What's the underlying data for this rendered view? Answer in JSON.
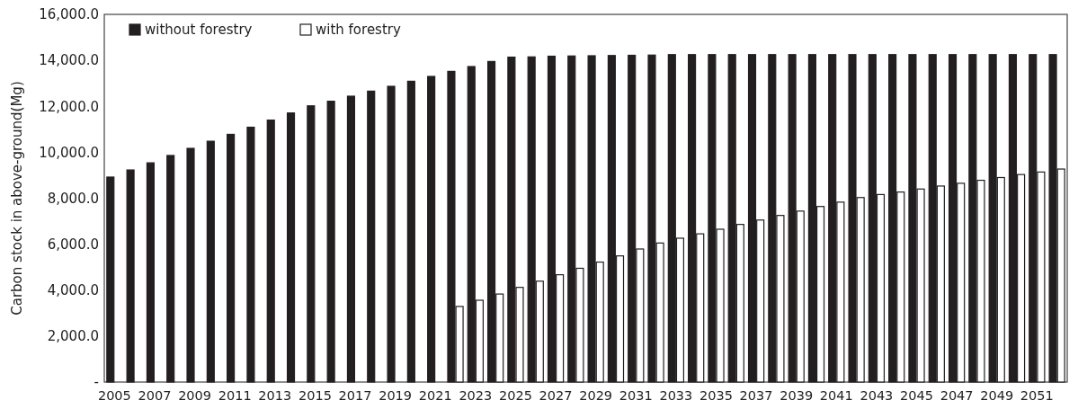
{
  "chart_data": {
    "type": "bar",
    "ylabel": "Carbon stock in above-ground(Mg)",
    "categories": [
      "2005",
      null,
      "2007",
      null,
      "2009",
      null,
      "2011",
      null,
      "2013",
      null,
      "2015",
      null,
      "2017",
      null,
      "2019",
      null,
      "2021",
      null,
      "2023",
      null,
      "2025",
      null,
      "2027",
      null,
      "2029",
      null,
      "2031",
      null,
      "2033",
      null,
      "2035",
      null,
      "2037",
      null,
      "2039",
      null,
      "2041",
      null,
      "2043",
      null,
      "2045",
      null,
      "2047",
      null,
      "2049",
      null,
      "2051",
      null
    ],
    "series": [
      {
        "name": "without forestry",
        "color": "#231f20",
        "values": [
          8920,
          9230,
          9540,
          9860,
          10170,
          10480,
          10780,
          11090,
          11400,
          11710,
          12020,
          12220,
          12440,
          12660,
          12870,
          13090,
          13300,
          13520,
          13730,
          13950,
          14140,
          14150,
          14180,
          14190,
          14200,
          14210,
          14220,
          14230,
          14250,
          14250,
          14250,
          14250,
          14250,
          14250,
          14250,
          14250,
          14250,
          14250,
          14250,
          14250,
          14250,
          14250,
          14250,
          14250,
          14250,
          14250,
          14250,
          14250
        ]
      },
      {
        "name": "with forestry",
        "color": "#ffffff",
        "values": [
          null,
          null,
          null,
          null,
          null,
          null,
          null,
          null,
          null,
          null,
          null,
          null,
          null,
          null,
          null,
          null,
          null,
          3290,
          3560,
          3830,
          4120,
          4390,
          4670,
          4950,
          5220,
          5490,
          5790,
          6050,
          6260,
          6450,
          6650,
          6860,
          7050,
          7250,
          7440,
          7640,
          7830,
          8030,
          8160,
          8270,
          8400,
          8530,
          8650,
          8780,
          8900,
          9030,
          9140,
          9270
        ]
      }
    ],
    "ylim": [
      0,
      16000
    ],
    "yticks": [
      {
        "value": 0,
        "label": "-"
      },
      {
        "value": 2000,
        "label": "2,000.0"
      },
      {
        "value": 4000,
        "label": "4,000.0"
      },
      {
        "value": 6000,
        "label": "6,000.0"
      },
      {
        "value": 8000,
        "label": "8,000.0"
      },
      {
        "value": 10000,
        "label": "10,000.0"
      },
      {
        "value": 12000,
        "label": "12,000.0"
      },
      {
        "value": 14000,
        "label": "14,000.0"
      },
      {
        "value": 16000,
        "label": "16,000.0"
      }
    ],
    "legend": "top left",
    "grid": false
  }
}
